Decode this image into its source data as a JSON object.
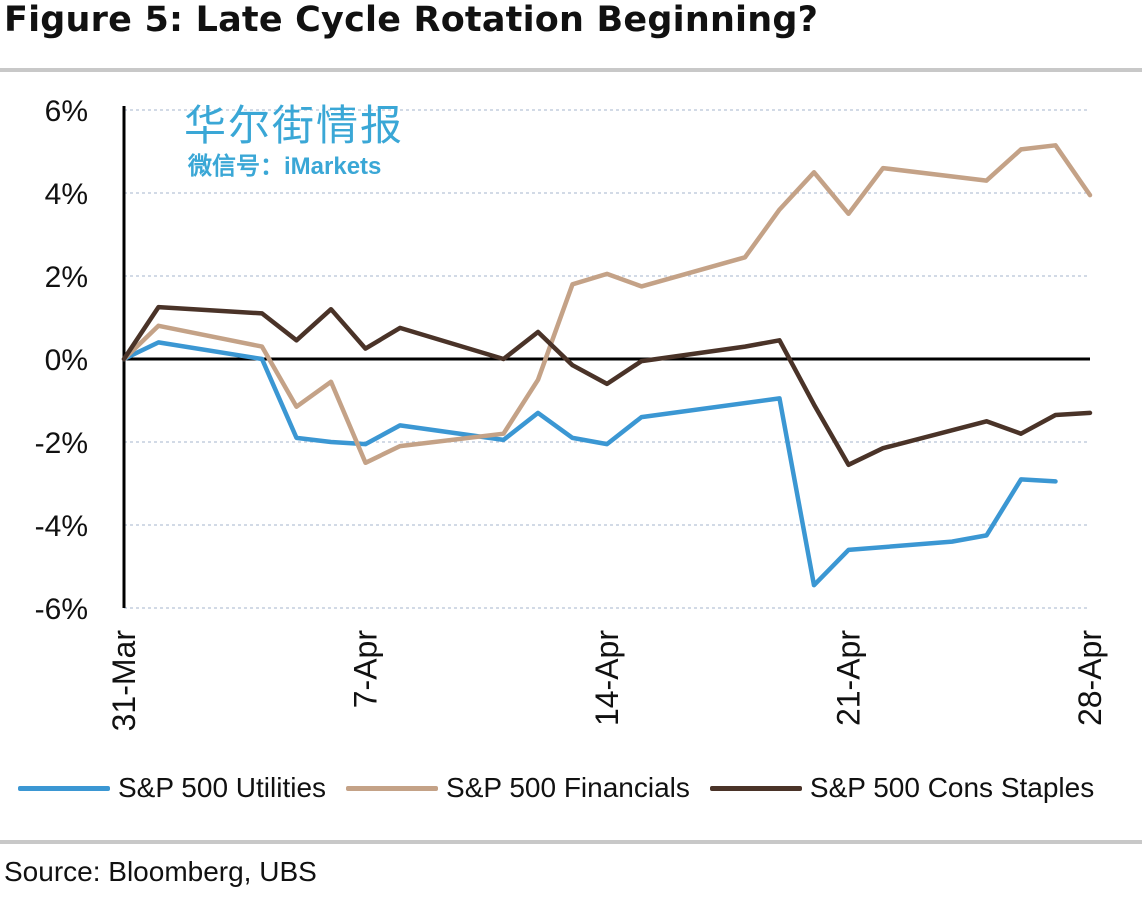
{
  "title": "Figure 5: Late Cycle Rotation Beginning?",
  "source": "Source:  Bloomberg, UBS",
  "watermark": {
    "main": "华尔街情报",
    "sub": "微信号：iMarkets"
  },
  "chart_data": {
    "type": "line",
    "ylim": [
      -6,
      6
    ],
    "yticks": [
      6,
      4,
      2,
      0,
      -2,
      -4,
      -6
    ],
    "ytick_labels": [
      "6%",
      "4%",
      "2%",
      "0%",
      "-2%",
      "-4%",
      "-6%"
    ],
    "xtick_labels": [
      "31-Mar",
      "7-Apr",
      "14-Apr",
      "21-Apr",
      "28-Apr"
    ],
    "xtick_index": [
      0,
      5,
      10,
      15,
      20
    ],
    "grid": true,
    "legend_position": "bottom",
    "x": [
      "31-Mar",
      "1-Apr",
      "2-Apr",
      "3-Apr",
      "4-Apr",
      "5-Apr",
      "6-Apr",
      "7-Apr",
      "8-Apr",
      "9-Apr",
      "10-Apr",
      "11-Apr",
      "12-Apr",
      "13-Apr",
      "14-Apr",
      "15-Apr",
      "16-Apr",
      "17-Apr",
      "18-Apr",
      "19-Apr",
      "20-Apr",
      "21-Apr",
      "22-Apr",
      "23-Apr",
      "24-Apr",
      "25-Apr",
      "26-Apr",
      "27-Apr",
      "28-Apr"
    ],
    "series": [
      {
        "name": "S&P 500 Utilities",
        "color": "#3b97d3",
        "points": [
          [
            0,
            0
          ],
          [
            1,
            0.4
          ],
          [
            4,
            0
          ],
          [
            5,
            -1.9
          ],
          [
            6,
            -2.0
          ],
          [
            7,
            -2.05
          ],
          [
            8,
            -1.6
          ],
          [
            11,
            -1.95
          ],
          [
            12,
            -1.3
          ],
          [
            13,
            -1.9
          ],
          [
            14,
            -2.05
          ],
          [
            15,
            -1.4
          ],
          [
            19,
            -0.95
          ],
          [
            20,
            -5.45
          ],
          [
            21,
            -4.6
          ],
          [
            24,
            -4.4
          ],
          [
            25,
            -4.25
          ],
          [
            26,
            -2.9
          ],
          [
            27,
            -2.95
          ]
        ]
      },
      {
        "name": "S&P 500 Financials",
        "color": "#c4a287",
        "points": [
          [
            0,
            0
          ],
          [
            1,
            0.8
          ],
          [
            4,
            0.3
          ],
          [
            5,
            -1.15
          ],
          [
            6,
            -0.55
          ],
          [
            7,
            -2.5
          ],
          [
            8,
            -2.1
          ],
          [
            11,
            -1.8
          ],
          [
            12,
            -0.5
          ],
          [
            13,
            1.8
          ],
          [
            14,
            2.05
          ],
          [
            15,
            1.75
          ],
          [
            18,
            2.45
          ],
          [
            19,
            3.6
          ],
          [
            20,
            4.5
          ],
          [
            21,
            3.5
          ],
          [
            22,
            4.6
          ],
          [
            25,
            4.3
          ],
          [
            26,
            5.05
          ],
          [
            27,
            5.15
          ],
          [
            28,
            3.95
          ]
        ]
      },
      {
        "name": "S&P 500 Cons Staples",
        "color": "#4a3328",
        "points": [
          [
            0,
            0
          ],
          [
            1,
            1.25
          ],
          [
            4,
            1.1
          ],
          [
            5,
            0.45
          ],
          [
            6,
            1.2
          ],
          [
            7,
            0.25
          ],
          [
            8,
            0.75
          ],
          [
            11,
            0.0
          ],
          [
            12,
            0.65
          ],
          [
            13,
            -0.15
          ],
          [
            14,
            -0.6
          ],
          [
            15,
            -0.05
          ],
          [
            18,
            0.3
          ],
          [
            19,
            0.45
          ],
          [
            20,
            -1.1
          ],
          [
            21,
            -2.55
          ],
          [
            22,
            -2.15
          ],
          [
            25,
            -1.5
          ],
          [
            26,
            -1.8
          ],
          [
            27,
            -1.35
          ],
          [
            28,
            -1.3
          ]
        ]
      }
    ]
  }
}
